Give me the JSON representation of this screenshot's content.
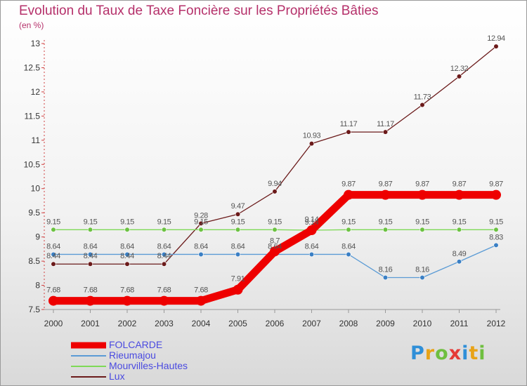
{
  "title": "Evolution du Taux de Taxe Foncière sur les Propriétés Bâties",
  "unit_label": "(en %)",
  "logo": {
    "text": "Proxiti",
    "colors": [
      "#2f8fd8",
      "#e8a317",
      "#6fbf3f",
      "#e53935",
      "#2f8fd8",
      "#e8a317",
      "#6fbf3f"
    ]
  },
  "chart_data": {
    "type": "line",
    "title": "Evolution du Taux de Taxe Foncière sur les Propriétés Bâties",
    "ylabel": "(en %)",
    "xlabel": "",
    "ylim": [
      7.5,
      13
    ],
    "yticks": [
      7.5,
      8,
      8.5,
      9,
      9.5,
      10,
      10.5,
      11,
      11.5,
      12,
      12.5,
      13
    ],
    "ytick_labels": [
      "7.5",
      "8",
      "8.5",
      "9",
      "9.5",
      "10",
      "10.5",
      "11",
      "11.5",
      "12",
      "12.5",
      "13"
    ],
    "categories": [
      "2000",
      "2001",
      "2002",
      "2003",
      "2004",
      "2005",
      "2006",
      "2007",
      "2008",
      "2009",
      "2010",
      "2011",
      "2012"
    ],
    "series": [
      {
        "name": "Lux",
        "color": "#6b1a1a",
        "marker": "#6b1a1a",
        "values": [
          8.44,
          8.44,
          8.44,
          8.44,
          9.28,
          9.47,
          9.94,
          10.93,
          11.17,
          11.17,
          11.73,
          12.32,
          12.94
        ],
        "labels": [
          "8.44",
          "8.44",
          "8.44",
          "8.44",
          "9.28",
          "9.47",
          "9.94",
          "10.93",
          "11.17",
          "11.17",
          "11.73",
          "12.32",
          "12.94"
        ]
      },
      {
        "name": "Rieumajou",
        "color": "#5b9bd5",
        "marker": "#3a7fc4",
        "values": [
          8.64,
          8.64,
          8.64,
          8.64,
          8.64,
          8.64,
          8.64,
          8.64,
          8.64,
          8.16,
          8.16,
          8.49,
          8.83
        ],
        "labels": [
          "8.64",
          "8.64",
          "8.64",
          "8.64",
          "8.64",
          "8.64",
          "8.64",
          "8.64",
          "8.64",
          "8.16",
          "8.16",
          "8.49",
          "8.83"
        ]
      },
      {
        "name": "Mourvilles-Hautes",
        "color": "#7ed957",
        "marker": "#6cc242",
        "values": [
          9.15,
          9.15,
          9.15,
          9.15,
          9.15,
          9.15,
          9.15,
          9.14,
          9.15,
          9.15,
          9.15,
          9.15,
          9.15
        ],
        "labels": [
          "9.15",
          "9.15",
          "9.15",
          "9.15",
          "9.15",
          "9.15",
          "9.15",
          "9.14",
          "9.15",
          "9.15",
          "9.15",
          "9.15",
          "9.15"
        ]
      },
      {
        "name": "FOLCARDE",
        "color": "#ee0000",
        "marker": "#ee0000",
        "values": [
          7.68,
          7.68,
          7.68,
          7.68,
          7.68,
          7.91,
          8.7,
          9.14,
          9.87,
          9.87,
          9.87,
          9.87,
          9.87
        ],
        "labels": [
          "7.68",
          "7.68",
          "7.68",
          "7.68",
          "7.68",
          "7.91",
          "8.7",
          "9.14",
          "9.87",
          "9.87",
          "9.87",
          "9.87",
          "9.87"
        ]
      }
    ],
    "legend": {
      "placement": "bottom-left",
      "entries": [
        {
          "name": "FOLCARDE",
          "color": "#ee0000",
          "weight": "thick"
        },
        {
          "name": "Rieumajou",
          "color": "#5b9bd5",
          "weight": "thin"
        },
        {
          "name": "Mourvilles-Hautes",
          "color": "#7ed957",
          "weight": "thin"
        },
        {
          "name": "Lux",
          "color": "#6b1a1a",
          "weight": "thin"
        }
      ]
    },
    "grid": false
  }
}
